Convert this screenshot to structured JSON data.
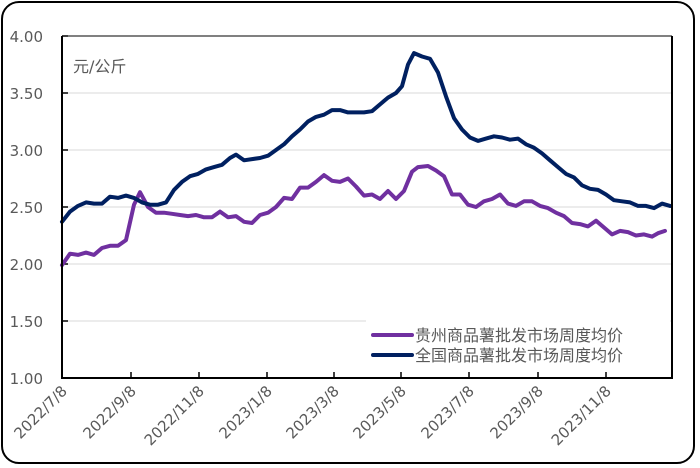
{
  "chart_data": {
    "type": "line",
    "title": "",
    "unit_label": "元/公斤",
    "xlabel": "",
    "ylabel": "元/公斤",
    "ylim": [
      1.0,
      4.0
    ],
    "yticks": [
      "1.00",
      "1.50",
      "2.00",
      "2.50",
      "3.00",
      "3.50",
      "4.00"
    ],
    "xticks": [
      "2022/7/8",
      "2022/9/8",
      "2022/11/8",
      "2023/1/8",
      "2023/3/8",
      "2023/5/8",
      "2023/7/8",
      "2023/9/8",
      "2023/11/8"
    ],
    "grid": true,
    "legend_position": "lower-right",
    "series": [
      {
        "name": "贵州商品薯批发市场周度均价",
        "color": "#7030A0",
        "points": [
          [
            62,
            1.99
          ],
          [
            70,
            2.09
          ],
          [
            78,
            2.08
          ],
          [
            86,
            2.1
          ],
          [
            94,
            2.08
          ],
          [
            102,
            2.14
          ],
          [
            110,
            2.16
          ],
          [
            118,
            2.16
          ],
          [
            126,
            2.21
          ],
          [
            134,
            2.52
          ],
          [
            140,
            2.63
          ],
          [
            148,
            2.5
          ],
          [
            156,
            2.45
          ],
          [
            164,
            2.45
          ],
          [
            172,
            2.44
          ],
          [
            180,
            2.43
          ],
          [
            188,
            2.42
          ],
          [
            196,
            2.43
          ],
          [
            204,
            2.41
          ],
          [
            212,
            2.41
          ],
          [
            220,
            2.46
          ],
          [
            228,
            2.41
          ],
          [
            236,
            2.42
          ],
          [
            244,
            2.37
          ],
          [
            252,
            2.36
          ],
          [
            260,
            2.43
          ],
          [
            268,
            2.45
          ],
          [
            276,
            2.5
          ],
          [
            284,
            2.58
          ],
          [
            292,
            2.57
          ],
          [
            300,
            2.67
          ],
          [
            308,
            2.67
          ],
          [
            316,
            2.72
          ],
          [
            324,
            2.78
          ],
          [
            332,
            2.73
          ],
          [
            340,
            2.72
          ],
          [
            348,
            2.75
          ],
          [
            356,
            2.68
          ],
          [
            364,
            2.6
          ],
          [
            372,
            2.61
          ],
          [
            380,
            2.57
          ],
          [
            388,
            2.64
          ],
          [
            396,
            2.57
          ],
          [
            404,
            2.64
          ],
          [
            412,
            2.81
          ],
          [
            418,
            2.85
          ],
          [
            428,
            2.86
          ],
          [
            436,
            2.82
          ],
          [
            444,
            2.77
          ],
          [
            452,
            2.61
          ],
          [
            460,
            2.61
          ],
          [
            468,
            2.52
          ],
          [
            476,
            2.5
          ],
          [
            484,
            2.55
          ],
          [
            492,
            2.57
          ],
          [
            500,
            2.61
          ],
          [
            508,
            2.53
          ],
          [
            516,
            2.51
          ],
          [
            524,
            2.55
          ],
          [
            532,
            2.55
          ],
          [
            540,
            2.51
          ],
          [
            548,
            2.49
          ],
          [
            556,
            2.45
          ],
          [
            564,
            2.42
          ],
          [
            572,
            2.36
          ],
          [
            580,
            2.35
          ],
          [
            588,
            2.33
          ],
          [
            596,
            2.38
          ],
          [
            604,
            2.32
          ],
          [
            612,
            2.26
          ],
          [
            620,
            2.29
          ],
          [
            628,
            2.28
          ],
          [
            636,
            2.25
          ],
          [
            644,
            2.26
          ],
          [
            652,
            2.24
          ],
          [
            658,
            2.27
          ],
          [
            665,
            2.29
          ]
        ]
      },
      {
        "name": "全国商品薯批发市场周度均价",
        "color": "#002060",
        "points": [
          [
            62,
            2.37
          ],
          [
            70,
            2.46
          ],
          [
            78,
            2.51
          ],
          [
            86,
            2.54
          ],
          [
            94,
            2.53
          ],
          [
            102,
            2.53
          ],
          [
            110,
            2.59
          ],
          [
            118,
            2.58
          ],
          [
            126,
            2.6
          ],
          [
            134,
            2.58
          ],
          [
            142,
            2.54
          ],
          [
            150,
            2.52
          ],
          [
            158,
            2.52
          ],
          [
            166,
            2.54
          ],
          [
            174,
            2.65
          ],
          [
            182,
            2.72
          ],
          [
            190,
            2.77
          ],
          [
            198,
            2.79
          ],
          [
            206,
            2.83
          ],
          [
            214,
            2.85
          ],
          [
            222,
            2.87
          ],
          [
            230,
            2.93
          ],
          [
            236,
            2.96
          ],
          [
            244,
            2.91
          ],
          [
            252,
            2.92
          ],
          [
            260,
            2.93
          ],
          [
            268,
            2.95
          ],
          [
            276,
            3.0
          ],
          [
            284,
            3.05
          ],
          [
            292,
            3.12
          ],
          [
            300,
            3.18
          ],
          [
            308,
            3.25
          ],
          [
            316,
            3.29
          ],
          [
            324,
            3.31
          ],
          [
            332,
            3.35
          ],
          [
            340,
            3.35
          ],
          [
            348,
            3.33
          ],
          [
            356,
            3.33
          ],
          [
            364,
            3.33
          ],
          [
            372,
            3.34
          ],
          [
            380,
            3.4
          ],
          [
            388,
            3.46
          ],
          [
            396,
            3.5
          ],
          [
            402,
            3.56
          ],
          [
            408,
            3.75
          ],
          [
            414,
            3.85
          ],
          [
            422,
            3.82
          ],
          [
            430,
            3.8
          ],
          [
            438,
            3.68
          ],
          [
            446,
            3.47
          ],
          [
            454,
            3.28
          ],
          [
            462,
            3.18
          ],
          [
            470,
            3.11
          ],
          [
            478,
            3.08
          ],
          [
            486,
            3.1
          ],
          [
            494,
            3.12
          ],
          [
            502,
            3.11
          ],
          [
            510,
            3.09
          ],
          [
            518,
            3.1
          ],
          [
            526,
            3.05
          ],
          [
            534,
            3.02
          ],
          [
            542,
            2.97
          ],
          [
            550,
            2.91
          ],
          [
            558,
            2.85
          ],
          [
            566,
            2.79
          ],
          [
            574,
            2.76
          ],
          [
            582,
            2.69
          ],
          [
            590,
            2.66
          ],
          [
            598,
            2.65
          ],
          [
            606,
            2.61
          ],
          [
            614,
            2.56
          ],
          [
            622,
            2.55
          ],
          [
            630,
            2.54
          ],
          [
            638,
            2.51
          ],
          [
            646,
            2.51
          ],
          [
            654,
            2.49
          ],
          [
            662,
            2.53
          ],
          [
            670,
            2.51
          ]
        ]
      }
    ]
  }
}
